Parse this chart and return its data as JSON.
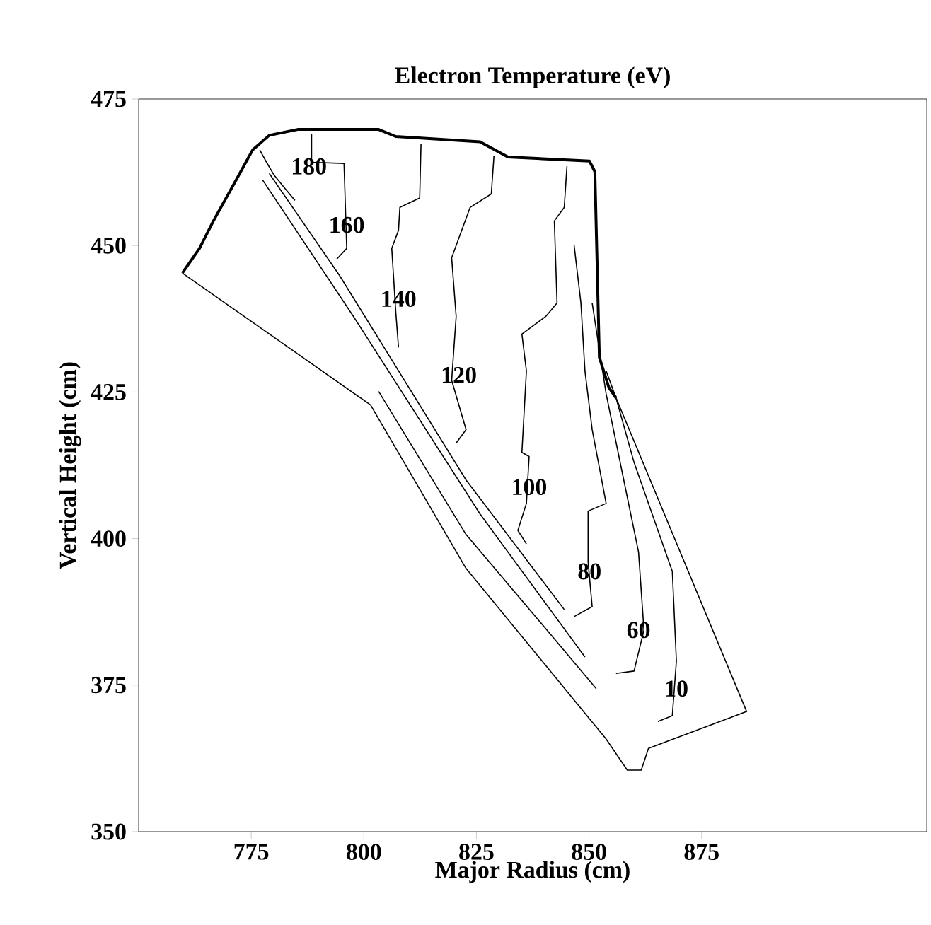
{
  "chart_data": {
    "type": "line",
    "title": "Electron Temperature (eV)",
    "xlabel": "Major Radius (cm)",
    "ylabel": "Vertical Height (cm)",
    "xlim": [
      750,
      925
    ],
    "ylim": [
      350,
      475
    ],
    "xticks": [
      775,
      800,
      825,
      850,
      875
    ],
    "yticks": [
      350,
      375,
      400,
      425,
      450,
      475
    ],
    "grid": false,
    "marker": "none",
    "line_style": "solid",
    "series": [
      {
        "color": "#000000",
        "x": [
          759.7,
          763.5,
          766.6,
          771.3,
          775.3,
          779.0,
          785.3,
          803.3,
          807.1,
          825.8,
          832.0,
          850.1,
          851.3,
          852.3,
          854.4,
          856.0
        ],
        "values": [
          445.3,
          449.5,
          454.2,
          460.7,
          466.3,
          468.8,
          469.8,
          469.8,
          468.6,
          467.7,
          465.1,
          464.4,
          462.6,
          430.9,
          425.8,
          424.0
        ]
      },
      {
        "color": "#000000",
        "x": [
          856.0,
          885.0,
          863.2,
          861.6,
          858.5,
          853.8,
          822.7,
          802.4,
          801.5,
          759.7
        ],
        "values": [
          424.0,
          370.5,
          364.2,
          360.5,
          360.5,
          365.8,
          394.9,
          421.6,
          422.8,
          445.3
        ]
      },
      {
        "color": "#000000",
        "x": [
          776.9,
          778.4,
          780.0,
          782.2,
          784.7
        ],
        "values": [
          466.3,
          464.2,
          462.1,
          460.0,
          457.7
        ]
      },
      {
        "color": "#000000",
        "x": [
          788.4,
          788.4,
          795.6,
          796.2,
          794.0
        ],
        "values": [
          469.1,
          464.2,
          464.0,
          449.5,
          447.7
        ]
      },
      {
        "color": "#000000",
        "x": [
          812.7,
          812.4,
          808.0,
          807.7,
          806.2,
          807.1,
          807.7
        ],
        "values": [
          467.4,
          458.1,
          456.5,
          452.6,
          449.5,
          438.6,
          432.6
        ]
      },
      {
        "color": "#000000",
        "x": [
          828.9,
          828.3,
          823.6,
          819.5,
          820.5,
          819.5,
          822.7,
          820.5
        ],
        "values": [
          465.3,
          458.8,
          456.5,
          447.9,
          437.9,
          427.0,
          418.6,
          416.3
        ]
      },
      {
        "color": "#000000",
        "x": [
          845.1,
          844.5,
          842.3,
          842.9,
          840.4,
          835.1,
          836.1,
          835.1,
          836.7,
          836.1,
          834.2,
          836.1
        ],
        "values": [
          463.5,
          456.5,
          454.2,
          440.2,
          437.9,
          434.9,
          428.6,
          414.7,
          414.0,
          406.0,
          401.4,
          399.1
        ]
      },
      {
        "color": "#000000",
        "x": [
          846.7,
          848.2,
          849.1,
          850.7,
          853.8,
          849.8,
          849.8,
          850.7,
          846.7
        ],
        "values": [
          450.0,
          440.2,
          428.6,
          418.6,
          406.0,
          404.7,
          396.0,
          388.4,
          386.7
        ]
      },
      {
        "color": "#000000",
        "x": [
          844.5,
          822.7,
          794.6,
          779.0
        ],
        "values": [
          387.9,
          410.0,
          444.9,
          462.3
        ]
      },
      {
        "color": "#000000",
        "x": [
          850.7,
          853.8,
          857.9,
          861.0,
          862.2,
          860.0,
          856.0
        ],
        "values": [
          440.2,
          424.7,
          409.3,
          397.7,
          384.4,
          377.4,
          377.0
        ]
      },
      {
        "color": "#000000",
        "x": [
          849.1,
          825.8,
          797.7,
          777.5
        ],
        "values": [
          379.8,
          404.2,
          437.9,
          461.2
        ]
      },
      {
        "color": "#000000",
        "x": [
          853.8,
          856.0,
          860.0,
          865.3,
          868.5,
          869.4,
          868.5,
          865.3
        ],
        "values": [
          428.6,
          424.0,
          413.0,
          401.4,
          394.4,
          379.1,
          369.8,
          368.8
        ]
      },
      {
        "color": "#000000",
        "x": [
          851.6,
          844.5,
          822.7,
          803.3
        ],
        "values": [
          374.4,
          380.9,
          400.7,
          425.1
        ]
      }
    ],
    "annotations": [
      {
        "text": "180",
        "x": 787.8,
        "y": 463.5
      },
      {
        "text": "160",
        "x": 796.2,
        "y": 453.5
      },
      {
        "text": "140",
        "x": 807.7,
        "y": 440.9
      },
      {
        "text": "120",
        "x": 821.1,
        "y": 427.9
      },
      {
        "text": "100",
        "x": 836.7,
        "y": 408.8
      },
      {
        "text": "80",
        "x": 850.1,
        "y": 394.4
      },
      {
        "text": "60",
        "x": 861.0,
        "y": 384.4
      },
      {
        "text": "10",
        "x": 869.4,
        "y": 374.4
      }
    ]
  }
}
